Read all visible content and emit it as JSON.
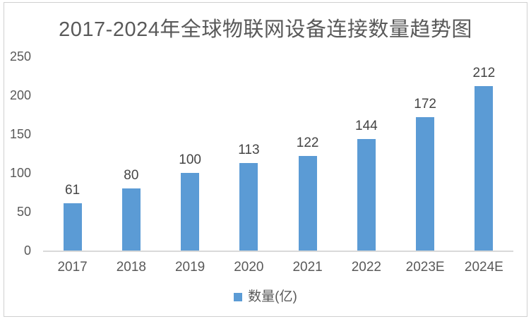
{
  "chart_data": {
    "type": "bar",
    "title": "2017-2024年全球物联网设备连接数量趋势图",
    "categories": [
      "2017",
      "2018",
      "2019",
      "2020",
      "2021",
      "2022",
      "2023E",
      "2024E"
    ],
    "values": [
      61,
      80,
      100,
      113,
      122,
      144,
      172,
      212
    ],
    "series": [
      {
        "name": "数量(亿)",
        "values": [
          61,
          80,
          100,
          113,
          122,
          144,
          172,
          212
        ]
      }
    ],
    "legend": {
      "label": "数量(亿)",
      "position": "bottom"
    },
    "xlabel": "",
    "ylabel": "",
    "y_ticks": [
      0,
      50,
      100,
      150,
      200,
      250
    ],
    "ylim": [
      0,
      250
    ],
    "grid": false,
    "data_labels_shown": true,
    "colors": {
      "bar": "#5B9BD5",
      "title_text": "#595959",
      "axis_text": "#595959",
      "value_label_text": "#444444",
      "axis_line": "#D9D9D9",
      "frame_border": "#D0D0D0"
    }
  }
}
